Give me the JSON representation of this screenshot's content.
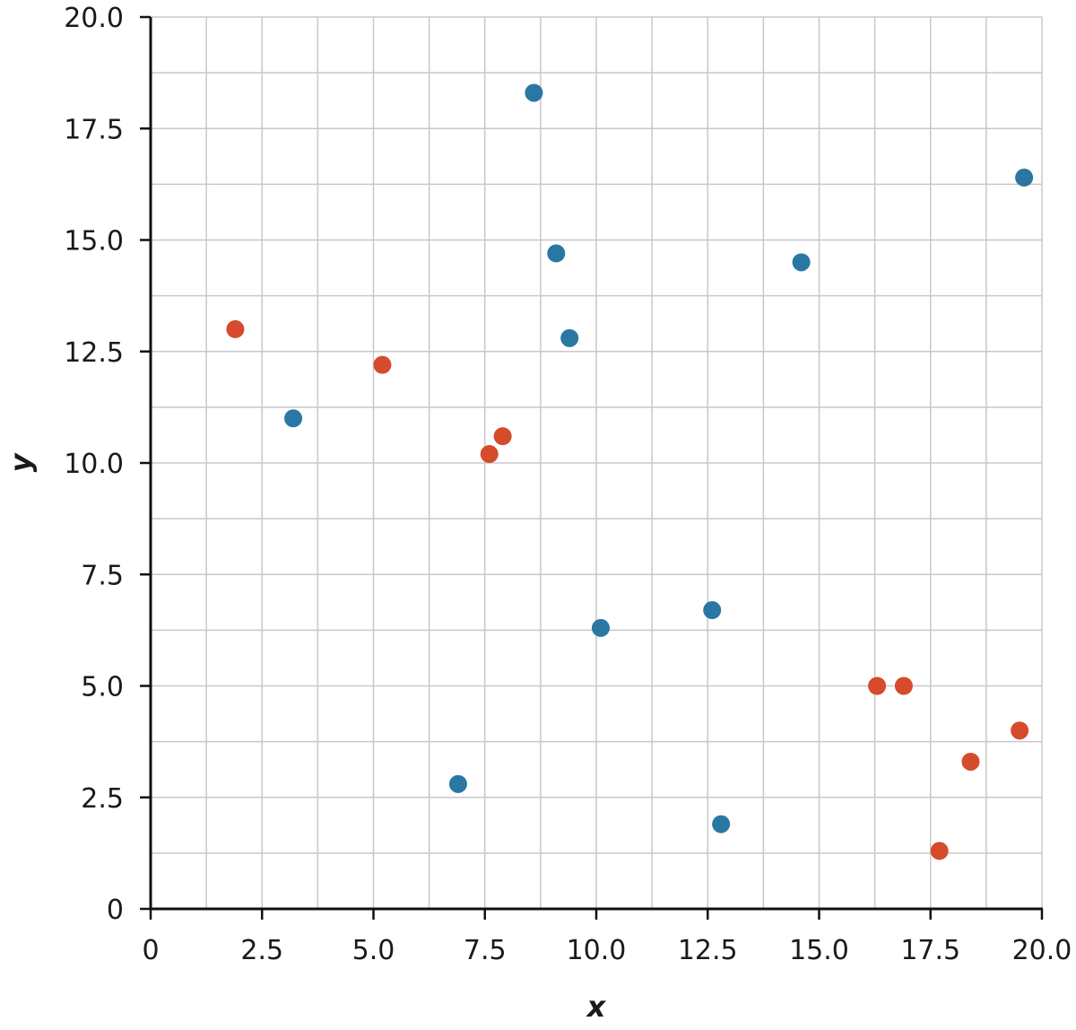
{
  "chart_data": {
    "type": "scatter",
    "xlabel": "x",
    "ylabel": "y",
    "xlim": [
      0,
      20
    ],
    "ylim": [
      0,
      20
    ],
    "x_ticks": [
      "0",
      "2.5",
      "5.0",
      "7.5",
      "10.0",
      "12.5",
      "15.0",
      "17.5",
      "20.0"
    ],
    "y_ticks": [
      "0",
      "2.5",
      "5.0",
      "7.5",
      "10.0",
      "12.5",
      "15.0",
      "17.5",
      "20.0"
    ],
    "grid": true,
    "series": [
      {
        "color": "#2a77a4",
        "points": [
          {
            "x": 8.6,
            "y": 18.3
          },
          {
            "x": 19.6,
            "y": 16.4
          },
          {
            "x": 9.1,
            "y": 14.7
          },
          {
            "x": 14.6,
            "y": 14.5
          },
          {
            "x": 9.4,
            "y": 12.8
          },
          {
            "x": 3.2,
            "y": 11.0
          },
          {
            "x": 10.1,
            "y": 6.3
          },
          {
            "x": 12.6,
            "y": 6.7
          },
          {
            "x": 6.9,
            "y": 2.8
          },
          {
            "x": 12.8,
            "y": 1.9
          }
        ]
      },
      {
        "color": "#d64b2c",
        "points": [
          {
            "x": 1.9,
            "y": 13.0
          },
          {
            "x": 5.2,
            "y": 12.2
          },
          {
            "x": 7.6,
            "y": 10.2
          },
          {
            "x": 7.9,
            "y": 10.6
          },
          {
            "x": 16.3,
            "y": 5.0
          },
          {
            "x": 16.9,
            "y": 5.0
          },
          {
            "x": 19.5,
            "y": 4.0
          },
          {
            "x": 18.4,
            "y": 3.3
          },
          {
            "x": 17.7,
            "y": 1.3
          }
        ]
      }
    ]
  }
}
